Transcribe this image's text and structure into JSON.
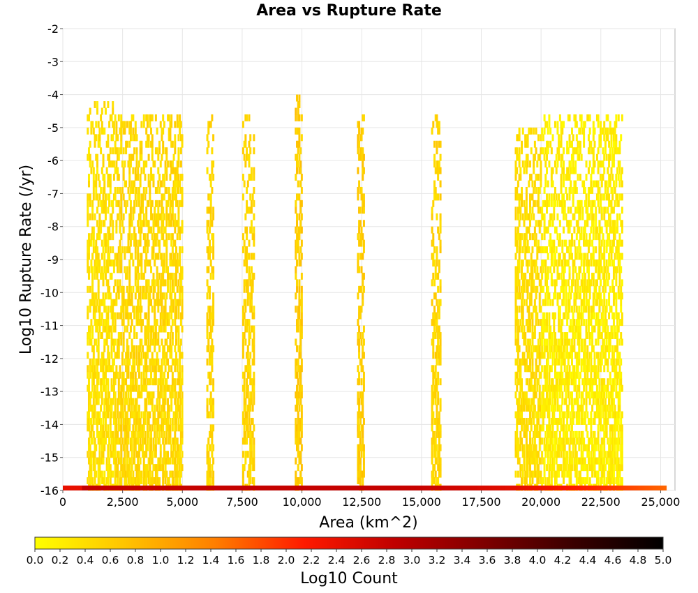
{
  "chart_data": {
    "type": "heatmap",
    "title": "Area vs Rupture Rate",
    "xlabel": "Area (km^2)",
    "ylabel": "Log10 Rupture Rate (/yr)",
    "xlim": [
      0,
      25600
    ],
    "ylim": [
      -16,
      -2
    ],
    "x_ticks": [
      0,
      2500,
      5000,
      7500,
      10000,
      12500,
      15000,
      17500,
      20000,
      22500,
      25000
    ],
    "x_tick_labels": [
      "0",
      "2,500",
      "5,000",
      "7,500",
      "10,000",
      "12,500",
      "15,000",
      "17,500",
      "20,000",
      "22,500",
      "25,000"
    ],
    "y_ticks": [
      -2,
      -3,
      -4,
      -5,
      -6,
      -7,
      -8,
      -9,
      -10,
      -11,
      -12,
      -13,
      -14,
      -15,
      -16
    ],
    "y_tick_labels": [
      "-2",
      "-3",
      "-4",
      "-5",
      "-6",
      "-7",
      "-8",
      "-9",
      "-10",
      "-11",
      "-12",
      "-13",
      "-14",
      "-15",
      "-16"
    ],
    "grid": true,
    "colorbar": {
      "label": "Log10 Count",
      "range": [
        0,
        5
      ],
      "ticks": [
        "0.0",
        "0.2",
        "0.4",
        "0.6",
        "0.8",
        "1.0",
        "1.2",
        "1.4",
        "1.6",
        "1.8",
        "2.0",
        "2.2",
        "2.4",
        "2.6",
        "2.8",
        "3.0",
        "3.2",
        "3.4",
        "3.6",
        "3.8",
        "4.0",
        "4.2",
        "4.4",
        "4.6",
        "4.8",
        "5.0"
      ],
      "colormap": [
        "#ffff00",
        "#ffc400",
        "#ff7f00",
        "#ff1a00",
        "#c00000",
        "#7f0000",
        "#3a0000",
        "#000000"
      ]
    },
    "bin_width_area": 50,
    "bin_height_log_rate": 0.2,
    "clusters": [
      {
        "area_range": [
          1000,
          2200
        ],
        "rate_range": [
          -16,
          -4.2
        ],
        "log10_count": 0.3
      },
      {
        "area_range": [
          2200,
          5000
        ],
        "rate_range": [
          -16,
          -4.5
        ],
        "log10_count": 0.4
      },
      {
        "area_range": [
          6000,
          6300
        ],
        "rate_range": [
          -16,
          -4.5
        ],
        "log10_count": 0.45
      },
      {
        "area_range": [
          7500,
          8000
        ],
        "rate_range": [
          -16,
          -4.5
        ],
        "log10_count": 0.45
      },
      {
        "area_range": [
          9700,
          10000
        ],
        "rate_range": [
          -16,
          -4
        ],
        "log10_count": 0.55
      },
      {
        "area_range": [
          12300,
          12600
        ],
        "rate_range": [
          -16,
          -4.5
        ],
        "log10_count": 0.55
      },
      {
        "area_range": [
          15400,
          15800
        ],
        "rate_range": [
          -16,
          -4.5
        ],
        "log10_count": 0.45
      },
      {
        "area_range": [
          18900,
          20000
        ],
        "rate_range": [
          -16,
          -5
        ],
        "log10_count": 0.35
      },
      {
        "area_range": [
          20000,
          23400
        ],
        "rate_range": [
          -16,
          -4.5
        ],
        "log10_count": 0.15
      }
    ],
    "bottom_band": {
      "rate": -16,
      "area_range": [
        0,
        25200
      ],
      "log10_count_center": 2.8,
      "log10_count_edge": 1.6
    }
  }
}
